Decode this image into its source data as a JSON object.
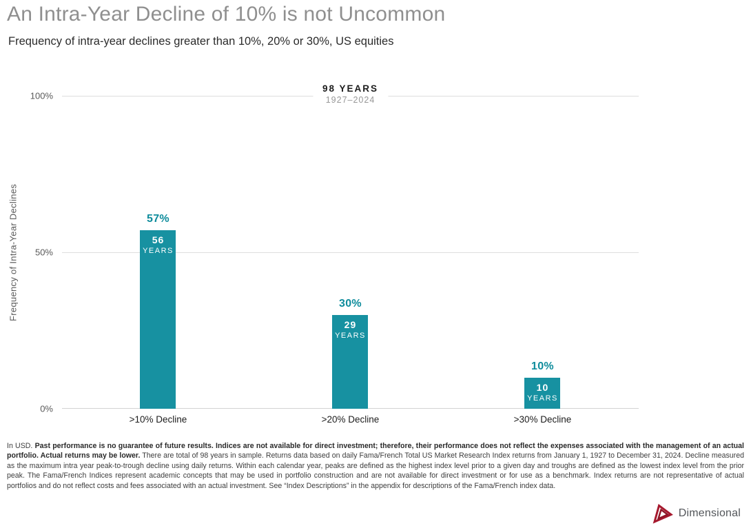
{
  "header": {
    "title": "An Intra-Year Decline of 10% is not Uncommon",
    "subtitle": "Frequency of intra-year declines greater than 10%, 20% or 30%, US equities"
  },
  "chart_data": {
    "type": "bar",
    "title": "An Intra-Year Decline of 10% is not Uncommon",
    "subtitle": "Frequency of intra-year declines greater than 10%, 20% or 30%, US equities",
    "categories": [
      ">10% Decline",
      ">20% Decline",
      ">30% Decline"
    ],
    "values": [
      57,
      30,
      10
    ],
    "value_labels": [
      "57%",
      "30%",
      "10%"
    ],
    "years": [
      "56",
      "29",
      "10"
    ],
    "years_unit": "YEARS",
    "annotation": {
      "total": "98 YEARS",
      "period": "1927–2024"
    },
    "ylabel": "Frequency of Intra-Year Declines",
    "yticks": [
      "100%",
      "50%",
      "0%"
    ],
    "ylim": [
      0,
      100
    ],
    "grid": "horizontal",
    "legend": "none",
    "bar_color": "#1791A1",
    "value_label_color": "#0E8C9C"
  },
  "footnote": {
    "prefix": "In USD. ",
    "bold": "Past performance is no guarantee of future results. Indices are not available for direct investment; therefore, their performance does not reflect the expenses associated with the management of an actual portfolio. Actual returns may be lower.",
    "rest": " There are total of 98 years in sample. Returns data based on daily Fama/French Total US Market Research Index returns from January 1, 1927 to December 31, 2024. Decline measured as the maximum intra year peak-to-trough decline using daily returns. Within each calendar year, peaks are defined as the highest index level prior to a given day and troughs are defined as the lowest index level from the prior peak. The Fama/French Indices represent academic concepts that may be used in portfolio construction and are not available for direct investment or for use as a benchmark. Index returns are not representative of actual portfolios and do not reflect costs and fees associated with an actual investment. See “Index Descriptions” in the appendix for descriptions of the Fama/French index data."
  },
  "logo": {
    "text": "Dimensional",
    "brand_red": "#A6192E",
    "brand_red_dark": "#8E1526"
  }
}
